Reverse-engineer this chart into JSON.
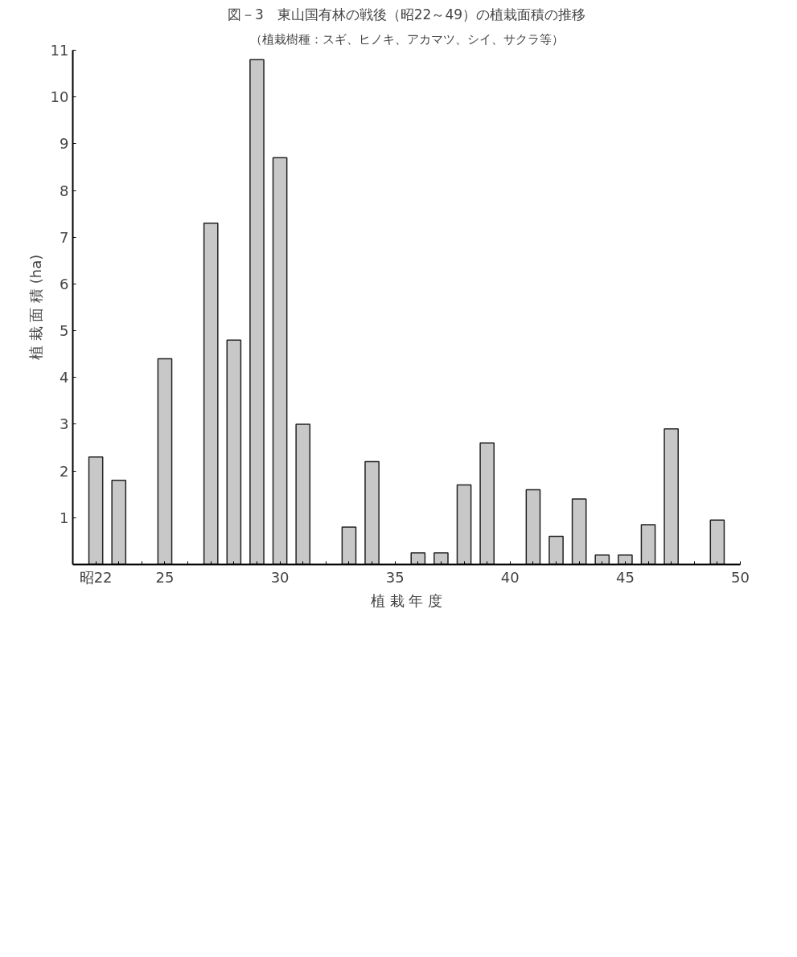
{
  "chart_data": {
    "type": "bar",
    "title": "図－3　東山国有林の戦後（昭22～49）の植栽面積の推移",
    "subtitle": "（植栽樹種：スギ、ヒノキ、アカマツ、シイ、サクラ等）",
    "xlabel": "植 栽 年 度",
    "ylabel": "植 栽 面 積 (ha)",
    "x": [
      22,
      23,
      24,
      25,
      26,
      27,
      28,
      29,
      30,
      31,
      32,
      33,
      34,
      35,
      36,
      37,
      38,
      39,
      40,
      41,
      42,
      43,
      44,
      45,
      46,
      47,
      48,
      49
    ],
    "values": [
      2.3,
      1.8,
      null,
      4.4,
      null,
      7.3,
      4.8,
      10.8,
      8.7,
      3.0,
      null,
      0.8,
      2.2,
      null,
      0.25,
      0.25,
      1.7,
      2.6,
      null,
      1.6,
      0.6,
      1.4,
      0.2,
      0.2,
      0.85,
      2.9,
      null,
      0.95
    ],
    "color": "#c8c8c8",
    "xlim": [
      21,
      50
    ],
    "xticks": [
      {
        "value": 22,
        "label": "昭22"
      },
      {
        "value": 23,
        "label": null
      },
      {
        "value": 24,
        "label": null
      },
      25,
      {
        "value": 26,
        "label": null
      },
      {
        "value": 27,
        "label": null
      },
      {
        "value": 28,
        "label": null
      },
      {
        "value": 29,
        "label": null
      },
      30,
      {
        "value": 31,
        "label": null
      },
      {
        "value": 32,
        "label": null
      },
      {
        "value": 33,
        "label": null
      },
      {
        "value": 34,
        "label": null
      },
      35,
      {
        "value": 36,
        "label": null
      },
      {
        "value": 37,
        "label": null
      },
      {
        "value": 38,
        "label": null
      },
      {
        "value": 39,
        "label": null
      },
      40,
      {
        "value": 41,
        "label": null
      },
      {
        "value": 42,
        "label": null
      },
      {
        "value": 43,
        "label": null
      },
      {
        "value": 44,
        "label": null
      },
      45,
      {
        "value": 46,
        "label": null
      },
      {
        "value": 47,
        "label": null
      },
      {
        "value": 48,
        "label": null
      },
      {
        "value": 49,
        "label": null
      },
      50
    ],
    "ylim": [
      0,
      11
    ],
    "yticks": [
      1,
      2,
      3,
      4,
      5,
      6,
      7,
      8,
      9,
      10,
      11
    ],
    "grid": false
  }
}
